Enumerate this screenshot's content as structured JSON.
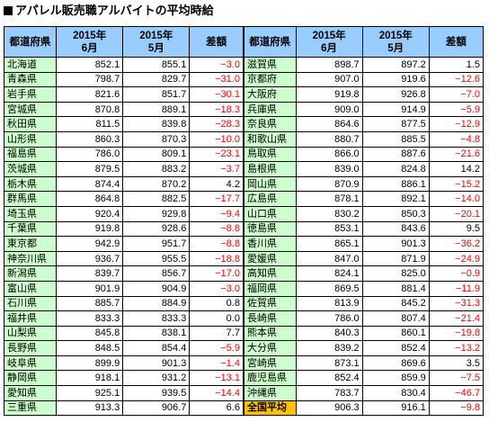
{
  "title": "アパレル販売職アルバイトの平均時給",
  "colors": {
    "header_bg": "#99ccff",
    "pref_bg": "#ccffcc",
    "total_bg": "#ffc000",
    "negative": "#ff0000"
  },
  "headers": {
    "pref": "都道府県",
    "june_line1": "2015年",
    "june_line2": "6月",
    "may_line1": "2015年",
    "may_line2": "5月",
    "diff": "差額"
  },
  "left_rows": [
    {
      "pref": "北海道",
      "june": "852.1",
      "may": "855.1",
      "diff": "−3.0",
      "neg": true
    },
    {
      "pref": "青森県",
      "june": "798.7",
      "may": "829.7",
      "diff": "−31.0",
      "neg": true
    },
    {
      "pref": "岩手県",
      "june": "821.6",
      "may": "851.7",
      "diff": "−30.1",
      "neg": true
    },
    {
      "pref": "宮城県",
      "june": "870.8",
      "may": "889.1",
      "diff": "−18.3",
      "neg": true
    },
    {
      "pref": "秋田県",
      "june": "811.5",
      "may": "839.8",
      "diff": "−28.3",
      "neg": true
    },
    {
      "pref": "山形県",
      "june": "860.3",
      "may": "870.3",
      "diff": "−10.0",
      "neg": true
    },
    {
      "pref": "福島県",
      "june": "786.0",
      "may": "809.1",
      "diff": "−23.1",
      "neg": true
    },
    {
      "pref": "茨城県",
      "june": "879.5",
      "may": "883.2",
      "diff": "−3.7",
      "neg": true
    },
    {
      "pref": "栃木県",
      "june": "874.4",
      "may": "870.2",
      "diff": "4.2",
      "neg": false
    },
    {
      "pref": "群馬県",
      "june": "864.8",
      "may": "882.5",
      "diff": "−17.7",
      "neg": true
    },
    {
      "pref": "埼玉県",
      "june": "920.4",
      "may": "929.8",
      "diff": "−9.4",
      "neg": true
    },
    {
      "pref": "千葉県",
      "june": "919.8",
      "may": "928.6",
      "diff": "−8.8",
      "neg": true
    },
    {
      "pref": "東京都",
      "june": "942.9",
      "may": "951.7",
      "diff": "−8.8",
      "neg": true
    },
    {
      "pref": "神奈川県",
      "june": "936.7",
      "may": "955.5",
      "diff": "−18.8",
      "neg": true
    },
    {
      "pref": "新潟県",
      "june": "839.7",
      "may": "856.7",
      "diff": "−17.0",
      "neg": true
    },
    {
      "pref": "富山県",
      "june": "901.9",
      "may": "904.9",
      "diff": "−3.0",
      "neg": true
    },
    {
      "pref": "石川県",
      "june": "885.7",
      "may": "884.9",
      "diff": "0.8",
      "neg": false
    },
    {
      "pref": "福井県",
      "june": "833.3",
      "may": "833.3",
      "diff": "0.0",
      "neg": false
    },
    {
      "pref": "山梨県",
      "june": "845.8",
      "may": "838.1",
      "diff": "7.7",
      "neg": false
    },
    {
      "pref": "長野県",
      "june": "848.5",
      "may": "854.4",
      "diff": "−5.9",
      "neg": true
    },
    {
      "pref": "岐阜県",
      "june": "899.9",
      "may": "901.3",
      "diff": "−1.4",
      "neg": true
    },
    {
      "pref": "静岡県",
      "june": "918.1",
      "may": "931.2",
      "diff": "−13.1",
      "neg": true
    },
    {
      "pref": "愛知県",
      "june": "925.1",
      "may": "939.5",
      "diff": "−14.4",
      "neg": true
    },
    {
      "pref": "三重県",
      "june": "913.3",
      "may": "906.7",
      "diff": "6.6",
      "neg": false
    }
  ],
  "right_rows": [
    {
      "pref": "滋賀県",
      "june": "898.7",
      "may": "897.2",
      "diff": "1.5",
      "neg": false
    },
    {
      "pref": "京都府",
      "june": "907.0",
      "may": "919.6",
      "diff": "−12.6",
      "neg": true
    },
    {
      "pref": "大阪府",
      "june": "919.8",
      "may": "926.8",
      "diff": "−7.0",
      "neg": true
    },
    {
      "pref": "兵庫県",
      "june": "909.0",
      "may": "914.9",
      "diff": "−5.9",
      "neg": true
    },
    {
      "pref": "奈良県",
      "june": "864.6",
      "may": "877.5",
      "diff": "−12.9",
      "neg": true
    },
    {
      "pref": "和歌山県",
      "june": "880.7",
      "may": "885.5",
      "diff": "−4.8",
      "neg": true
    },
    {
      "pref": "鳥取県",
      "june": "866.0",
      "may": "887.6",
      "diff": "−21.6",
      "neg": true
    },
    {
      "pref": "島根県",
      "june": "839.0",
      "may": "824.8",
      "diff": "14.2",
      "neg": false
    },
    {
      "pref": "岡山県",
      "june": "870.9",
      "may": "886.1",
      "diff": "−15.2",
      "neg": true
    },
    {
      "pref": "広島県",
      "june": "878.1",
      "may": "892.1",
      "diff": "−14.0",
      "neg": true
    },
    {
      "pref": "山口県",
      "june": "830.2",
      "may": "850.3",
      "diff": "−20.1",
      "neg": true
    },
    {
      "pref": "徳島県",
      "june": "853.1",
      "may": "843.6",
      "diff": "9.5",
      "neg": false
    },
    {
      "pref": "香川県",
      "june": "865.1",
      "may": "901.3",
      "diff": "−36.2",
      "neg": true
    },
    {
      "pref": "愛媛県",
      "june": "847.0",
      "may": "871.9",
      "diff": "−24.9",
      "neg": true
    },
    {
      "pref": "高知県",
      "june": "824.1",
      "may": "825.0",
      "diff": "−0.9",
      "neg": true
    },
    {
      "pref": "福岡県",
      "june": "869.5",
      "may": "881.4",
      "diff": "−11.9",
      "neg": true
    },
    {
      "pref": "佐賀県",
      "june": "813.9",
      "may": "845.2",
      "diff": "−31.3",
      "neg": true
    },
    {
      "pref": "長崎県",
      "june": "786.0",
      "may": "807.4",
      "diff": "−21.4",
      "neg": true
    },
    {
      "pref": "熊本県",
      "june": "840.3",
      "may": "860.1",
      "diff": "−19.8",
      "neg": true
    },
    {
      "pref": "大分県",
      "june": "839.2",
      "may": "852.4",
      "diff": "−13.2",
      "neg": true
    },
    {
      "pref": "宮崎県",
      "june": "873.1",
      "may": "869.6",
      "diff": "3.5",
      "neg": false
    },
    {
      "pref": "鹿児島県",
      "june": "852.4",
      "may": "859.9",
      "diff": "−7.5",
      "neg": true
    },
    {
      "pref": "沖縄県",
      "june": "783.7",
      "may": "830.4",
      "diff": "−46.7",
      "neg": true
    },
    {
      "pref": "全国平均",
      "june": "906.3",
      "may": "916.1",
      "diff": "−9.8",
      "neg": true,
      "total": true
    }
  ]
}
